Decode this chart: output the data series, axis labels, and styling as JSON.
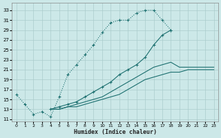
{
  "xlabel": "Humidex (Indice chaleur)",
  "bg_color": "#cce8e8",
  "line_color": "#1a6e6e",
  "grid_color": "#aacccc",
  "xlim": [
    -0.5,
    23.5
  ],
  "ylim": [
    10.5,
    34.5
  ],
  "xticks": [
    0,
    1,
    2,
    3,
    4,
    5,
    6,
    7,
    8,
    9,
    10,
    11,
    12,
    13,
    14,
    15,
    16,
    17,
    18,
    19,
    20,
    21,
    22,
    23
  ],
  "yticks": [
    11,
    13,
    15,
    17,
    19,
    21,
    23,
    25,
    27,
    29,
    31,
    33
  ],
  "line1_x": [
    0,
    1,
    2,
    3,
    4,
    5,
    6,
    7,
    8,
    9,
    10,
    11,
    12,
    13,
    14,
    15,
    16,
    17,
    18
  ],
  "line1_y": [
    16.0,
    14.0,
    12.0,
    12.5,
    11.5,
    15.5,
    20.0,
    22.0,
    24.0,
    26.0,
    28.5,
    30.5,
    31.0,
    31.0,
    32.5,
    33.0,
    33.0,
    31.0,
    29.0
  ],
  "line2_x": [
    4,
    5,
    6,
    7,
    8,
    9,
    10,
    11,
    12,
    13,
    14,
    15,
    16,
    17,
    18,
    19,
    20,
    21,
    22,
    23
  ],
  "line2_y": [
    13.0,
    13.5,
    14.0,
    14.5,
    15.5,
    16.5,
    17.5,
    18.5,
    20.0,
    21.0,
    22.0,
    23.5,
    26.0,
    28.0,
    29.0,
    null,
    null,
    null,
    null,
    null
  ],
  "line3_x": [
    4,
    5,
    6,
    7,
    8,
    9,
    10,
    11,
    12,
    13,
    14,
    15,
    16,
    17,
    18,
    19,
    20,
    21,
    22,
    23
  ],
  "line3_y": [
    13.0,
    13.0,
    13.5,
    14.0,
    14.5,
    15.0,
    15.5,
    16.5,
    17.5,
    18.5,
    19.5,
    20.5,
    21.5,
    22.0,
    22.5,
    21.5,
    21.5,
    21.5,
    21.5,
    21.5
  ],
  "line4_x": [
    4,
    5,
    6,
    7,
    8,
    9,
    10,
    11,
    12,
    13,
    14,
    15,
    16,
    17,
    18,
    19,
    20,
    21,
    22,
    23
  ],
  "line4_y": [
    13.0,
    13.0,
    13.5,
    13.5,
    14.0,
    14.5,
    15.0,
    15.5,
    16.0,
    17.0,
    18.0,
    19.0,
    19.5,
    20.0,
    20.5,
    20.5,
    21.0,
    21.0,
    21.0,
    21.0
  ]
}
